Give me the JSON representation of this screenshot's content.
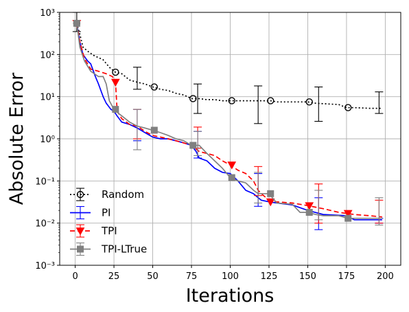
{
  "chart_data": {
    "type": "line",
    "xlabel": "Iterations",
    "ylabel": "Absolute Error",
    "xlim": [
      -10,
      210
    ],
    "ylim": [
      0.001,
      1000
    ],
    "yscale": "log",
    "grid": true,
    "legend_position": "lower-left",
    "x_ticks": [
      0,
      25,
      50,
      75,
      100,
      125,
      150,
      175,
      200
    ],
    "x_tick_labels": [
      "0",
      "25",
      "50",
      "75",
      "100",
      "125",
      "150",
      "175",
      "200"
    ],
    "y_ticks": [
      0.001,
      0.01,
      0.1,
      1,
      10,
      100,
      1000
    ],
    "y_tick_labels": [
      "10⁻³",
      "10⁻²",
      "10⁻¹",
      "10⁰",
      "10¹",
      "10²",
      "10³"
    ],
    "series": [
      {
        "name": "Random",
        "color": "#000000",
        "dash": "2,3",
        "marker": "circle-open",
        "x": [
          1,
          3,
          5,
          8,
          12,
          18,
          22,
          26,
          30,
          35,
          40,
          45,
          50,
          55,
          60,
          65,
          70,
          75,
          80,
          85,
          90,
          95,
          100,
          110,
          120,
          126,
          130,
          140,
          150,
          155,
          160,
          170,
          175,
          180,
          190,
          198
        ],
        "y": [
          550,
          300,
          150,
          120,
          95,
          75,
          50,
          38,
          35,
          25,
          22,
          20,
          17,
          15,
          14,
          12,
          11,
          9,
          9,
          8.5,
          8.5,
          8,
          8,
          8,
          8,
          8,
          7.5,
          7.5,
          7.5,
          7,
          6.8,
          6.5,
          5.5,
          5.5,
          5.3,
          5.3
        ],
        "markers_x": [
          1,
          26,
          51,
          76,
          101,
          126,
          151,
          176
        ],
        "markers_y": [
          550,
          38,
          17,
          9,
          8,
          8,
          7.5,
          5.5
        ],
        "errorbars": [
          {
            "x": 1,
            "low": 350,
            "high": 1000
          },
          {
            "x": 40,
            "low": 15,
            "high": 50
          },
          {
            "x": 79,
            "low": 4,
            "high": 20
          },
          {
            "x": 118,
            "low": 2.3,
            "high": 18
          },
          {
            "x": 157,
            "low": 2.6,
            "high": 17
          },
          {
            "x": 196,
            "low": 4,
            "high": 13
          }
        ]
      },
      {
        "name": "PI",
        "color": "#0000ff",
        "dash": "",
        "marker": "none",
        "x": [
          1,
          3,
          5,
          8,
          10,
          13,
          15,
          18,
          20,
          23,
          25,
          27,
          30,
          35,
          40,
          45,
          50,
          55,
          60,
          65,
          70,
          75,
          78,
          80,
          85,
          90,
          95,
          100,
          105,
          110,
          115,
          118,
          120,
          125,
          130,
          140,
          150,
          160,
          175,
          180,
          190,
          198
        ],
        "y": [
          550,
          200,
          100,
          70,
          60,
          30,
          20,
          10,
          7,
          5,
          4.5,
          3.5,
          2.5,
          2.2,
          1.8,
          1.4,
          1.1,
          1.0,
          1.0,
          0.9,
          0.8,
          0.7,
          0.5,
          0.35,
          0.3,
          0.2,
          0.16,
          0.15,
          0.1,
          0.06,
          0.05,
          0.04,
          0.035,
          0.032,
          0.03,
          0.027,
          0.02,
          0.016,
          0.015,
          0.012,
          0.012,
          0.012
        ],
        "markers_x": [],
        "markers_y": [],
        "errorbars": [
          {
            "x": 40,
            "low": 0.9,
            "high": 5
          },
          {
            "x": 79,
            "low": 0.35,
            "high": 1.5
          },
          {
            "x": 118,
            "low": 0.025,
            "high": 0.15
          },
          {
            "x": 157,
            "low": 0.007,
            "high": 0.04
          },
          {
            "x": 196,
            "low": 0.01,
            "high": 0.013
          }
        ]
      },
      {
        "name": "TPI",
        "color": "#ff0000",
        "dash": "7,4",
        "marker": "triangle-down",
        "x": [
          1,
          3,
          6,
          10,
          15,
          20,
          24,
          26,
          27,
          28,
          30,
          35,
          40,
          45,
          50,
          55,
          60,
          65,
          70,
          75,
          80,
          85,
          90,
          95,
          100,
          105,
          110,
          115,
          118,
          120,
          125,
          130,
          140,
          150,
          160,
          170,
          175,
          180,
          190,
          198
        ],
        "y": [
          550,
          200,
          80,
          45,
          40,
          35,
          30,
          22,
          5,
          4,
          3,
          2.2,
          2.0,
          1.5,
          1.2,
          1.1,
          1.0,
          0.9,
          0.8,
          0.7,
          0.5,
          0.45,
          0.4,
          0.3,
          0.24,
          0.18,
          0.15,
          0.1,
          0.06,
          0.05,
          0.035,
          0.032,
          0.03,
          0.026,
          0.022,
          0.018,
          0.017,
          0.016,
          0.015,
          0.014
        ],
        "markers_x": [
          1,
          26,
          101,
          126,
          151,
          176
        ],
        "markers_y": [
          550,
          22,
          0.24,
          0.032,
          0.026,
          0.017
        ],
        "errorbars": [
          {
            "x": 40,
            "low": 1.0,
            "high": 5
          },
          {
            "x": 79,
            "low": 0.6,
            "high": 1.9
          },
          {
            "x": 118,
            "low": 0.045,
            "high": 0.22
          },
          {
            "x": 157,
            "low": 0.01,
            "high": 0.085
          },
          {
            "x": 196,
            "low": 0.01,
            "high": 0.035
          }
        ]
      },
      {
        "name": "TPI-LTrue",
        "color": "#808080",
        "dash": "",
        "marker": "square",
        "x": [
          1,
          3,
          6,
          10,
          15,
          18,
          20,
          22,
          25,
          28,
          30,
          35,
          40,
          45,
          50,
          55,
          60,
          65,
          70,
          75,
          80,
          85,
          90,
          95,
          100,
          105,
          110,
          115,
          118,
          120,
          125,
          130,
          140,
          145,
          150,
          155,
          160,
          170,
          176,
          180,
          190,
          198
        ],
        "y": [
          550,
          150,
          70,
          40,
          30,
          30,
          20,
          8,
          5,
          4,
          3.5,
          2.5,
          2.0,
          1.8,
          1.6,
          1.4,
          1.2,
          1.0,
          0.9,
          0.7,
          0.7,
          0.45,
          0.3,
          0.2,
          0.12,
          0.1,
          0.09,
          0.06,
          0.05,
          0.05,
          0.05,
          0.03,
          0.028,
          0.018,
          0.018,
          0.016,
          0.015,
          0.015,
          0.013,
          0.013,
          0.013,
          0.013
        ],
        "markers_x": [
          1,
          26,
          51,
          76,
          101,
          126,
          151,
          176
        ],
        "markers_y": [
          550,
          5,
          1.6,
          0.7,
          0.12,
          0.05,
          0.018,
          0.013
        ],
        "errorbars": [
          {
            "x": 40,
            "low": 0.55,
            "high": 5
          },
          {
            "x": 79,
            "low": 0.4,
            "high": 1.5
          },
          {
            "x": 118,
            "low": 0.03,
            "high": 0.16
          },
          {
            "x": 157,
            "low": 0.012,
            "high": 0.06
          },
          {
            "x": 196,
            "low": 0.009,
            "high": 0.04
          }
        ]
      }
    ]
  }
}
